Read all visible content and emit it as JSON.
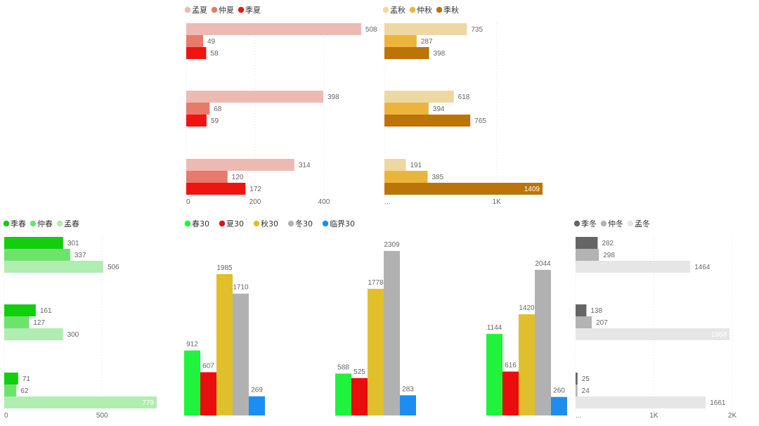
{
  "chart_data": [
    {
      "id": "summer",
      "type": "bar",
      "orientation": "horizontal",
      "legend_position": "top-left",
      "series": [
        {
          "name": "孟夏",
          "color": "#ECBAB2",
          "values": [
            508,
            398,
            314
          ]
        },
        {
          "name": "仲夏",
          "color": "#E8796B",
          "values": [
            49,
            68,
            120
          ]
        },
        {
          "name": "季夏",
          "color": "#EE1410",
          "values": [
            58,
            59,
            172
          ]
        }
      ],
      "xlim": [
        0,
        550
      ],
      "x_ticks": [
        {
          "value": 0,
          "label": "0"
        },
        {
          "value": 200,
          "label": "200"
        },
        {
          "value": 400,
          "label": "400"
        }
      ],
      "grid": true
    },
    {
      "id": "autumn",
      "type": "bar",
      "orientation": "horizontal",
      "legend_position": "top-left",
      "series": [
        {
          "name": "孟秋",
          "color": "#EDD8A2",
          "values": [
            735,
            618,
            191
          ]
        },
        {
          "name": "仲秋",
          "color": "#EBB53D",
          "values": [
            287,
            394,
            385
          ]
        },
        {
          "name": "季秋",
          "color": "#BA7407",
          "values": [
            398,
            765,
            1409
          ]
        }
      ],
      "xlim": [
        0,
        1600
      ],
      "x_ticks": [
        {
          "value": 0,
          "label": "..."
        },
        {
          "value": 1000,
          "label": "1K"
        }
      ],
      "grid": true
    },
    {
      "id": "spring",
      "type": "bar",
      "orientation": "horizontal",
      "legend_position": "top-left",
      "series": [
        {
          "name": "季春",
          "color": "#12CE0F",
          "values": [
            301,
            161,
            71
          ]
        },
        {
          "name": "仲春",
          "color": "#6EE36C",
          "values": [
            337,
            127,
            62
          ]
        },
        {
          "name": "孟春",
          "color": "#B0EDB0",
          "values": [
            506,
            300,
            779
          ]
        }
      ],
      "xlim": [
        0,
        800
      ],
      "x_ticks": [
        {
          "value": 0,
          "label": "0"
        },
        {
          "value": 500,
          "label": "500"
        }
      ],
      "grid": true
    },
    {
      "id": "thirty",
      "type": "bar",
      "orientation": "vertical",
      "legend_position": "top-left",
      "series": [
        {
          "name": "春30",
          "color": "#1FF33B",
          "values": [
            912,
            588,
            1144
          ]
        },
        {
          "name": "夏30",
          "color": "#E80E0D",
          "values": [
            607,
            525,
            616
          ]
        },
        {
          "name": "秋30",
          "color": "#E1BF2C",
          "values": [
            1985,
            1778,
            1420
          ]
        },
        {
          "name": "冬30",
          "color": "#B1B1B1",
          "values": [
            1710,
            2309,
            2044
          ]
        },
        {
          "name": "临界30",
          "color": "#1C8EF2",
          "values": [
            269,
            283,
            260
          ]
        }
      ],
      "ylim": [
        0,
        2309
      ],
      "grid": false
    },
    {
      "id": "winter",
      "type": "bar",
      "orientation": "horizontal",
      "legend_position": "top-left",
      "series": [
        {
          "name": "季冬",
          "color": "#656565",
          "values": [
            282,
            138,
            25
          ]
        },
        {
          "name": "仲冬",
          "color": "#B3B3B3",
          "values": [
            298,
            207,
            24
          ]
        },
        {
          "name": "孟冬",
          "color": "#E6E6E6",
          "values": [
            1464,
            1964,
            1661
          ]
        }
      ],
      "xlim": [
        0,
        2000
      ],
      "x_ticks": [
        {
          "value": 0,
          "label": "..."
        },
        {
          "value": 1000,
          "label": "1K"
        },
        {
          "value": 2000,
          "label": "2K"
        }
      ],
      "grid": true
    }
  ]
}
